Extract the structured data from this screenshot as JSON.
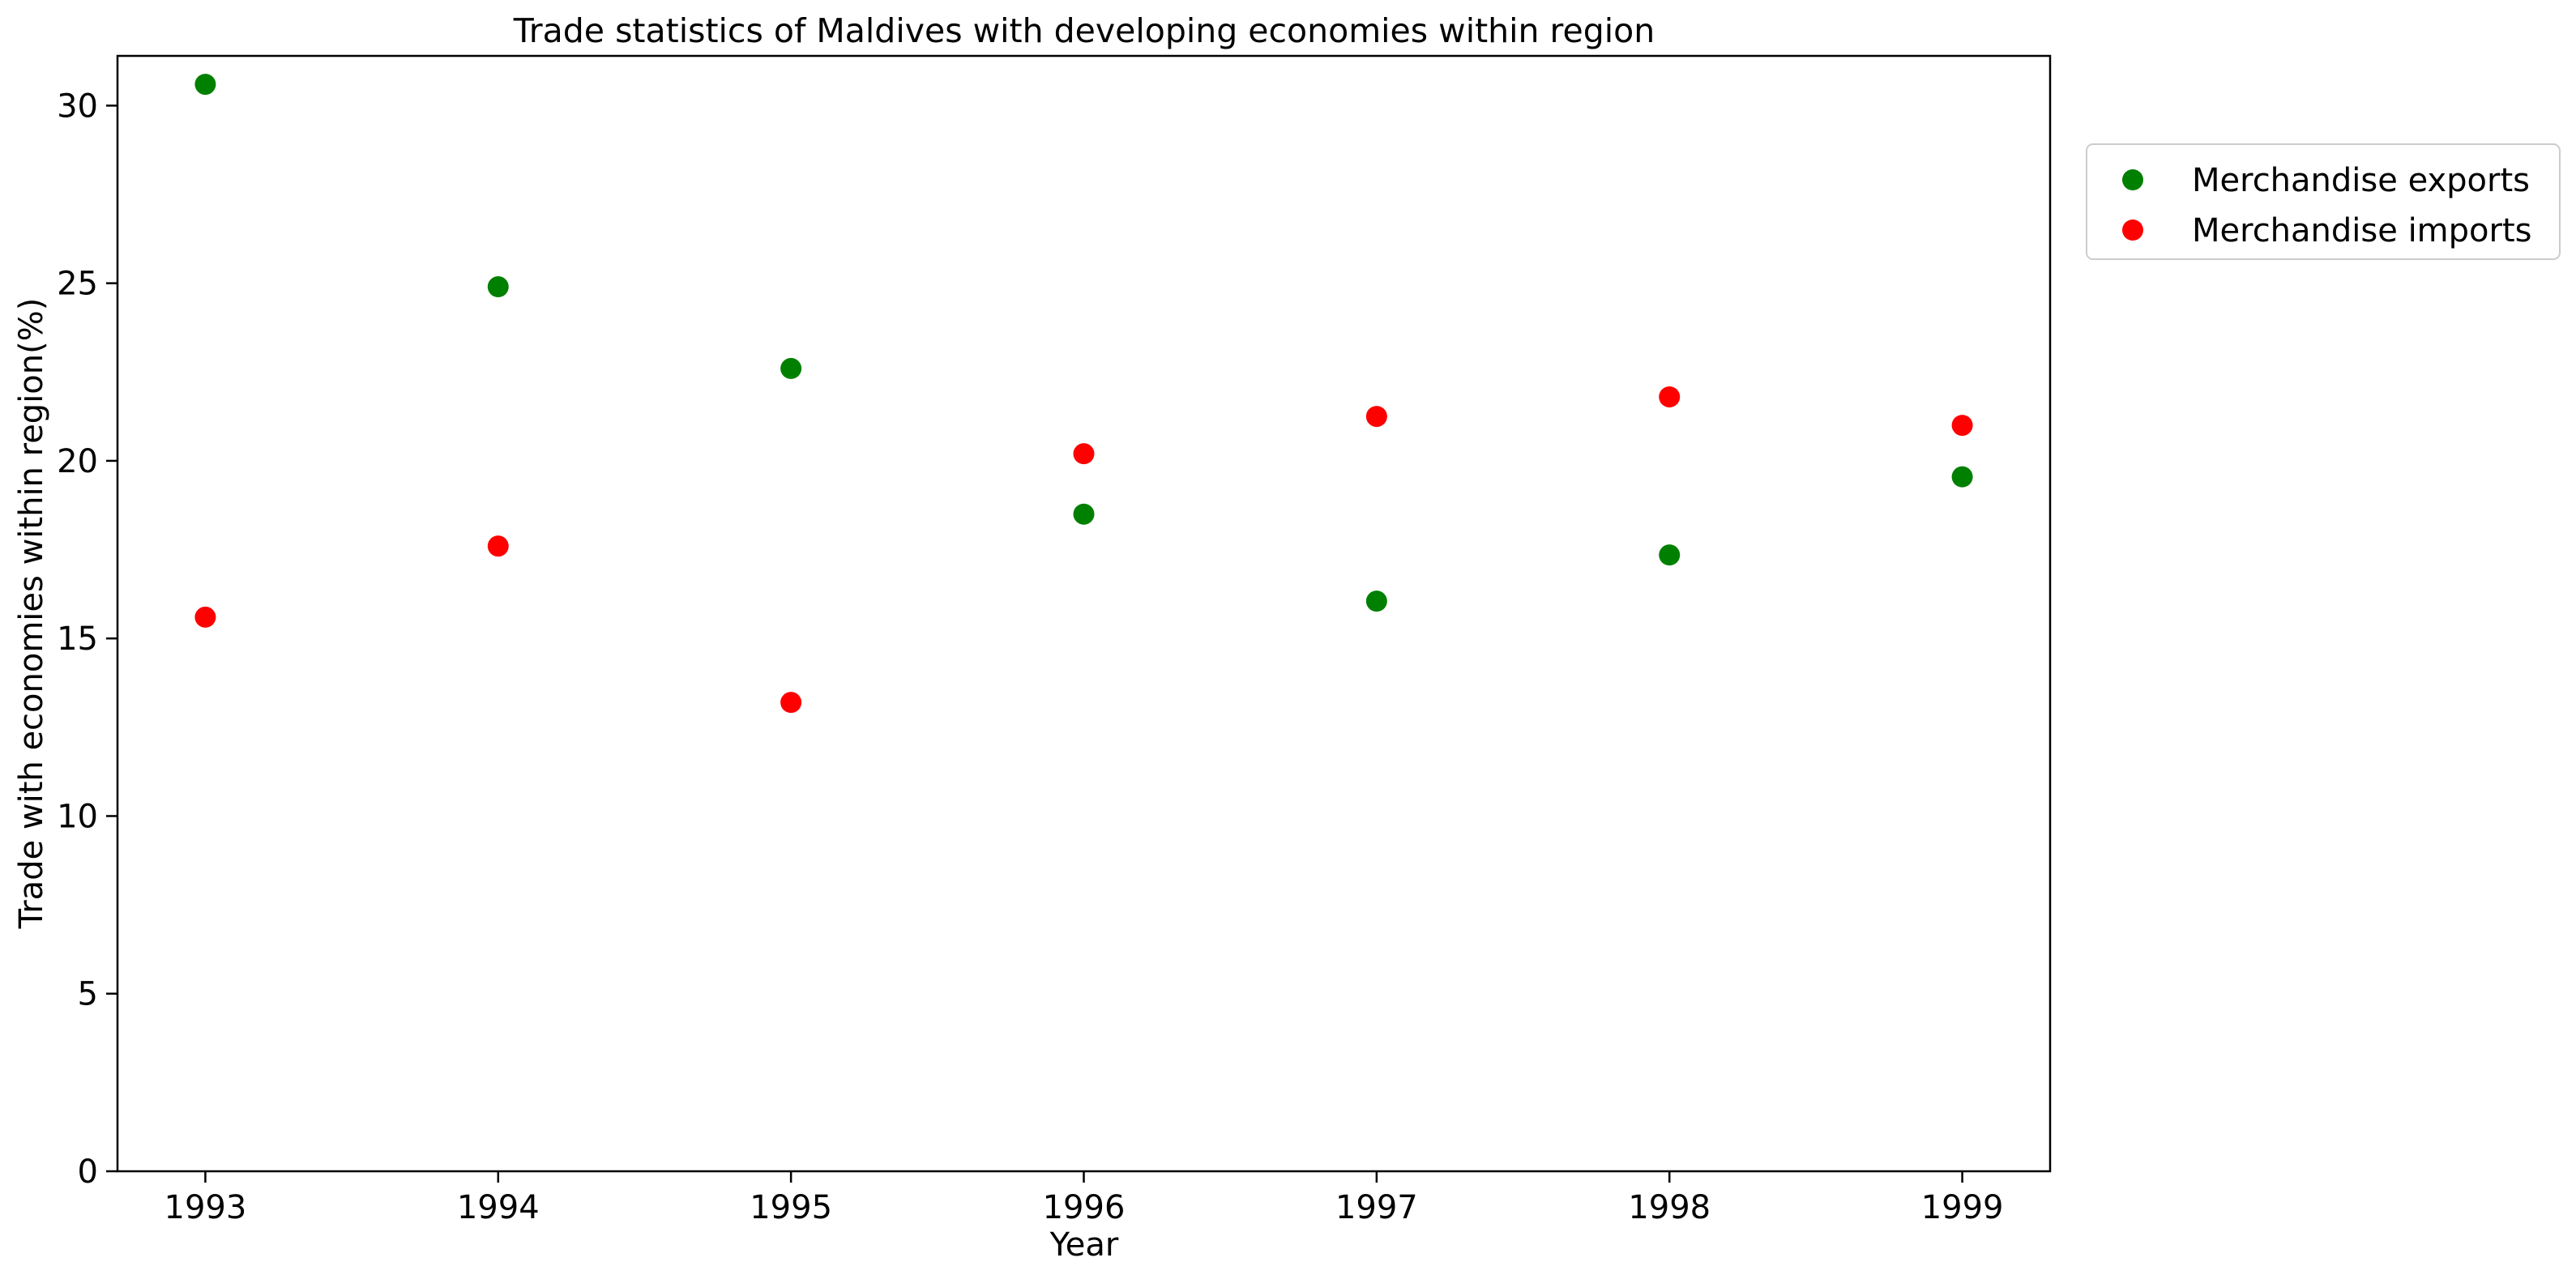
{
  "chart_data": {
    "type": "scatter",
    "title": "Trade statistics of Maldives with developing economies within region",
    "xlabel": "Year",
    "ylabel": "Trade with economies within region(%)",
    "x": [
      1993,
      1994,
      1995,
      1996,
      1997,
      1998,
      1999
    ],
    "xlim": [
      1992.7,
      1999.3
    ],
    "ylim": [
      0,
      31.4
    ],
    "yticks": [
      0,
      5,
      10,
      15,
      20,
      25,
      30
    ],
    "grid": false,
    "legend_position": "upper-right-outside",
    "series": [
      {
        "name": "Merchandise exports",
        "color": "#008000",
        "values": [
          30.6,
          24.9,
          22.6,
          18.5,
          16.05,
          17.35,
          19.55
        ]
      },
      {
        "name": "Merchandise imports",
        "color": "#ff0000",
        "values": [
          15.6,
          17.6,
          13.2,
          20.2,
          21.25,
          21.8,
          21.0
        ]
      }
    ]
  }
}
